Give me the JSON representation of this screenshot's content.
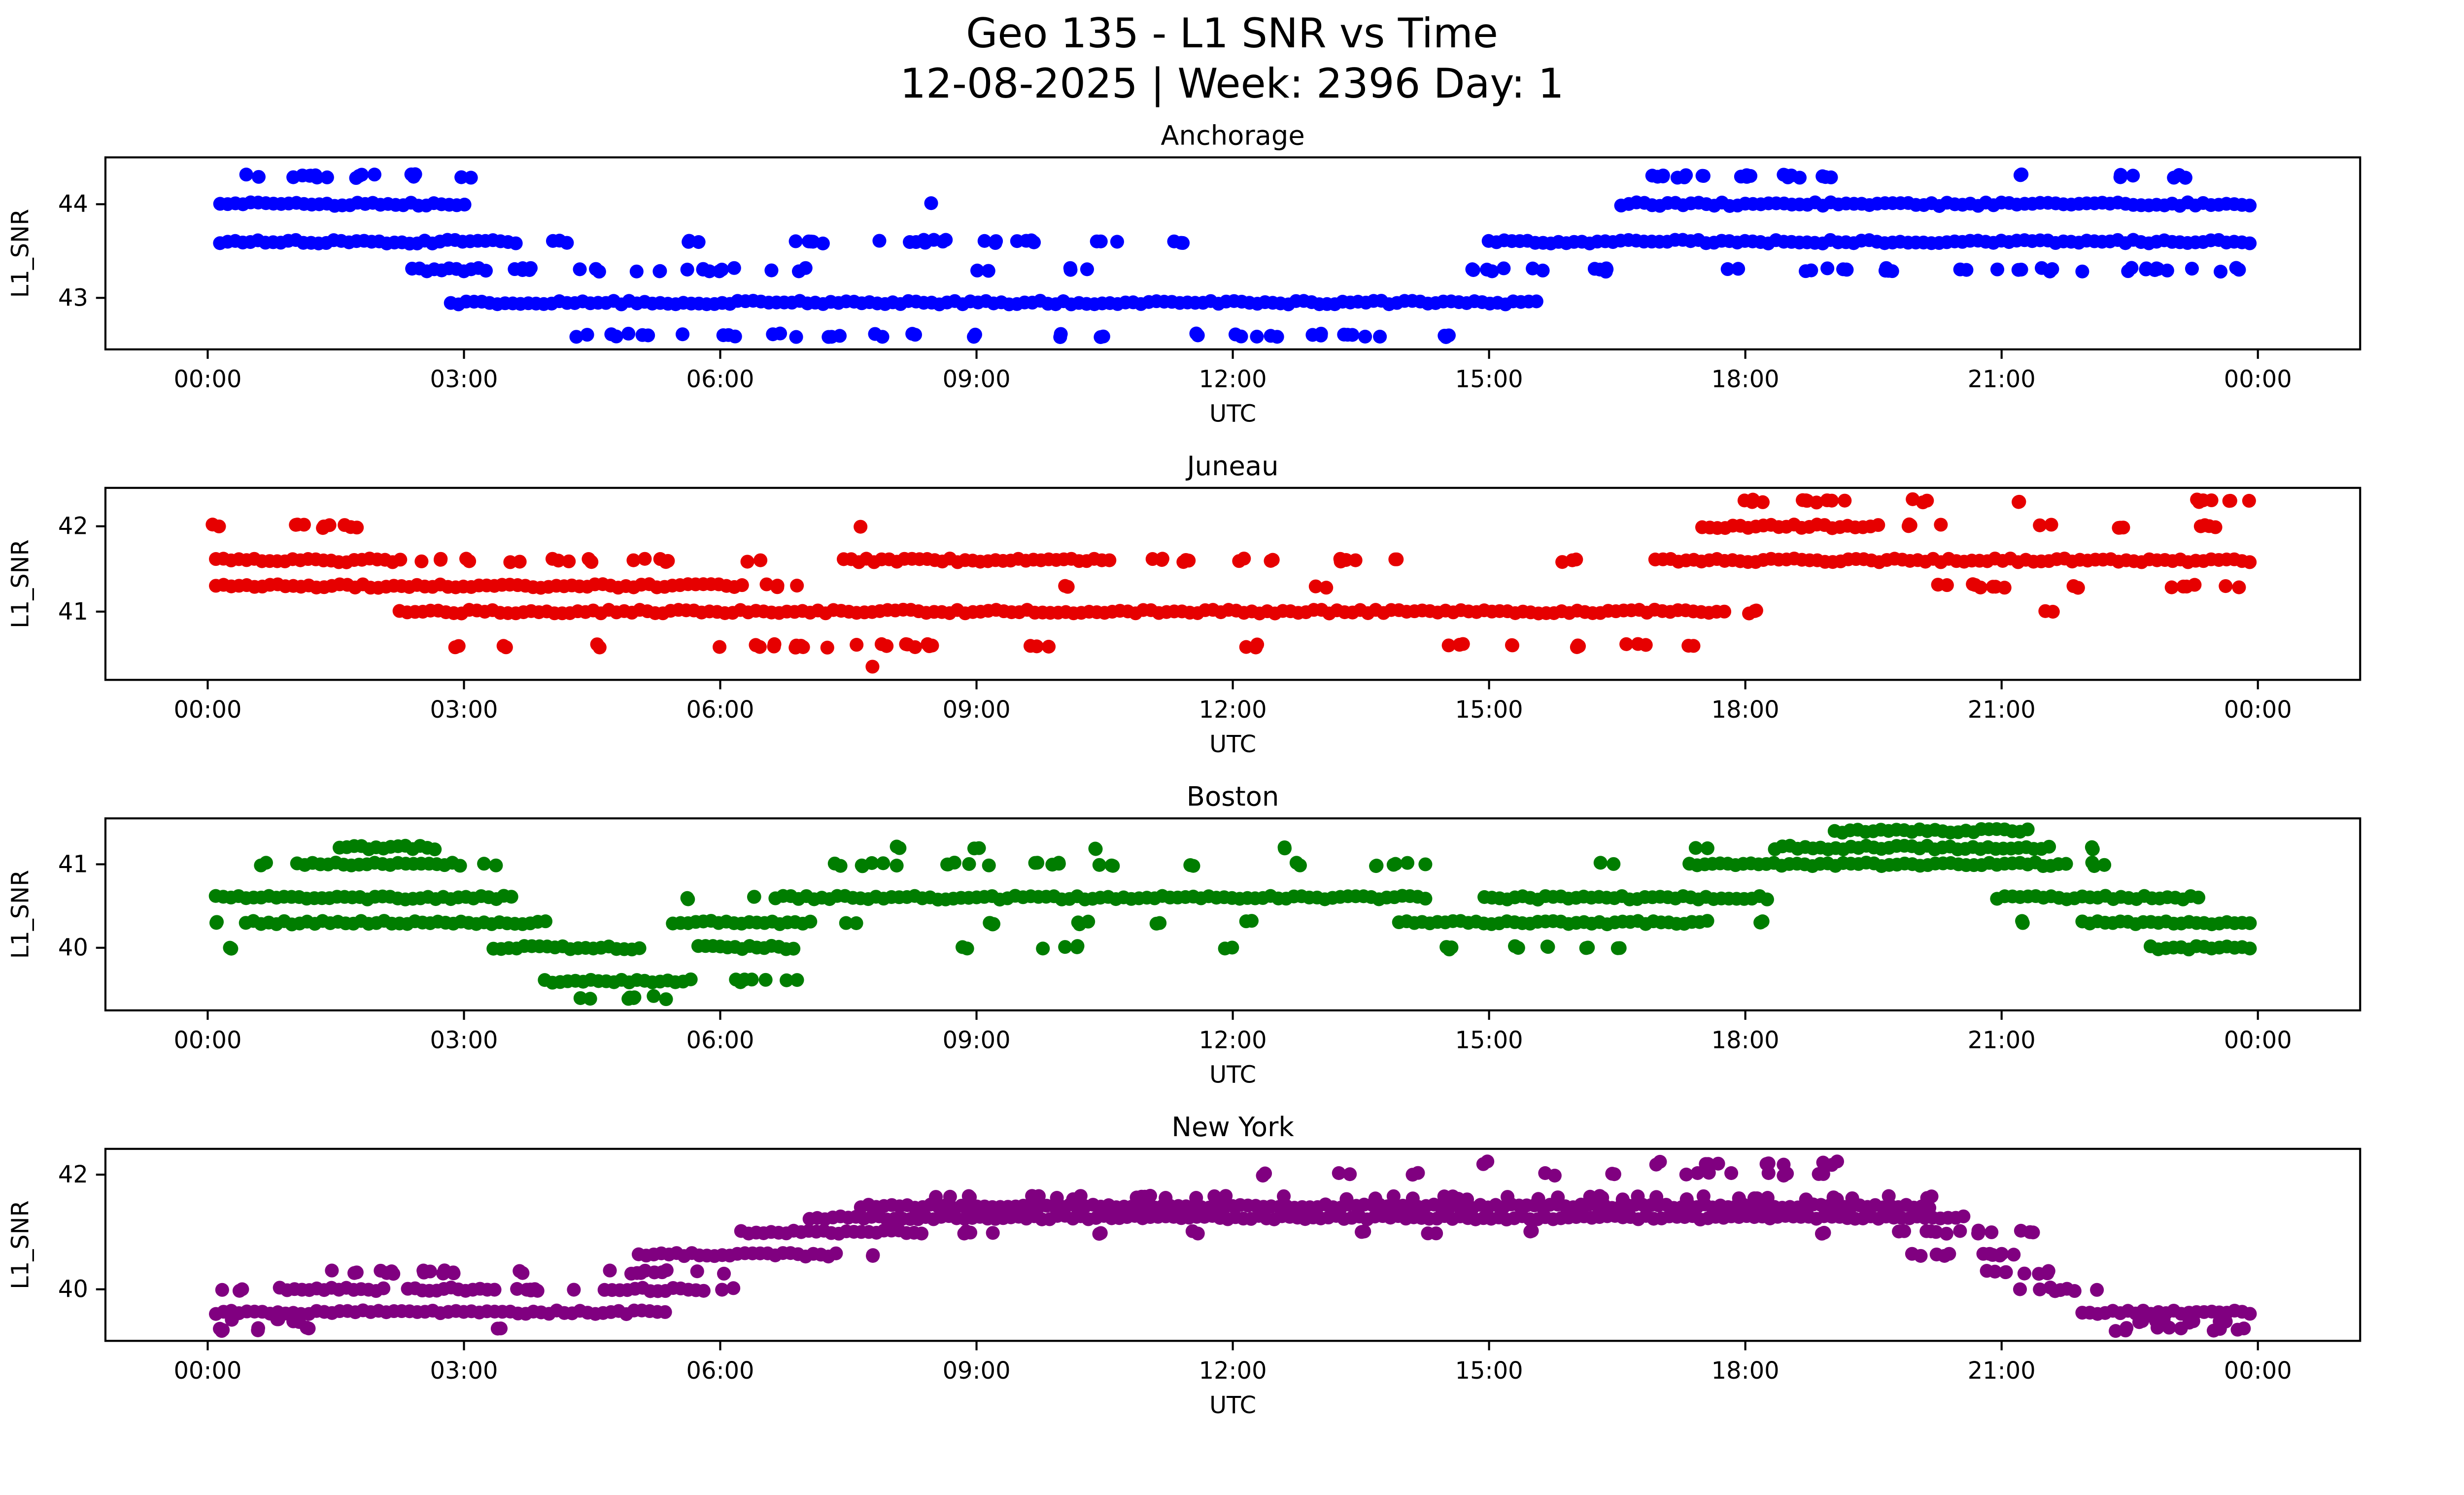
{
  "figure": {
    "title": "Geo 135 - L1 SNR vs Time",
    "subtitle": "12-08-2025 | Week: 2396 Day: 1"
  },
  "axes": {
    "xlabel": "UTC",
    "ylabel": "L1_SNR",
    "xticks": [
      "00:00",
      "03:00",
      "06:00",
      "09:00",
      "12:00",
      "15:00",
      "18:00",
      "21:00",
      "00:00"
    ],
    "xtick_hours": [
      0,
      3,
      6,
      9,
      12,
      15,
      18,
      21,
      24
    ]
  },
  "chart_data": [
    {
      "type": "scatter",
      "title": "Anchorage",
      "color": "#0000ff",
      "xlabel": "UTC",
      "ylabel": "L1_SNR",
      "xlim": [
        0,
        24
      ],
      "ylim": [
        42.45,
        44.5
      ],
      "yticks": [
        43,
        44
      ],
      "ytick_labels": [
        "43",
        "44"
      ],
      "snr_levels": [
        42.6,
        42.95,
        43.3,
        43.6,
        44.0,
        44.3
      ],
      "runs": [
        [
          44.3,
          0.45,
          0.6,
          2
        ],
        [
          44.3,
          0.95,
          1.55,
          7
        ],
        [
          44.3,
          1.7,
          2.0,
          4
        ],
        [
          44.3,
          2.25,
          2.45,
          3
        ],
        [
          44.3,
          2.95,
          3.1,
          2
        ],
        [
          44.3,
          16.85,
          17.6,
          9
        ],
        [
          44.3,
          17.9,
          18.65,
          9
        ],
        [
          44.3,
          18.9,
          19.15,
          3
        ],
        [
          44.3,
          21.2,
          21.35,
          2
        ],
        [
          44.3,
          22.3,
          22.55,
          3
        ],
        [
          44.3,
          23.0,
          23.35,
          4
        ],
        [
          44.0,
          0.1,
          3.05,
          -1
        ],
        [
          44.0,
          8.4,
          8.5,
          1
        ],
        [
          44.0,
          16.5,
          23.95,
          -1
        ],
        [
          43.6,
          0.1,
          3.65,
          -1
        ],
        [
          43.6,
          4.0,
          4.25,
          3
        ],
        [
          43.6,
          5.55,
          5.8,
          3
        ],
        [
          43.6,
          6.85,
          7.35,
          5
        ],
        [
          43.6,
          7.5,
          8.65,
          9
        ],
        [
          43.6,
          8.9,
          9.75,
          7
        ],
        [
          43.6,
          10.35,
          10.65,
          3
        ],
        [
          43.6,
          11.15,
          11.45,
          3
        ],
        [
          43.6,
          14.95,
          23.95,
          -1
        ],
        [
          43.3,
          2.35,
          3.3,
          -1
        ],
        [
          43.3,
          3.5,
          4.0,
          5
        ],
        [
          43.3,
          4.3,
          4.6,
          3
        ],
        [
          43.3,
          5.0,
          5.35,
          3
        ],
        [
          43.3,
          5.5,
          6.6,
          8
        ],
        [
          43.3,
          6.9,
          7.1,
          2
        ],
        [
          43.3,
          9.0,
          9.2,
          2
        ],
        [
          43.3,
          10.05,
          10.3,
          3
        ],
        [
          43.3,
          14.55,
          15.2,
          6
        ],
        [
          43.3,
          15.5,
          16.6,
          8
        ],
        [
          43.3,
          17.75,
          17.95,
          2
        ],
        [
          43.3,
          18.6,
          19.3,
          6
        ],
        [
          43.3,
          19.6,
          20.0,
          4
        ],
        [
          43.3,
          20.5,
          21.6,
          8
        ],
        [
          43.3,
          21.9,
          23.3,
          10
        ],
        [
          43.3,
          23.55,
          23.8,
          3
        ],
        [
          42.95,
          2.8,
          15.6,
          -1
        ],
        [
          42.6,
          4.2,
          4.45,
          2
        ],
        [
          42.6,
          4.7,
          5.6,
          6
        ],
        [
          42.6,
          5.9,
          6.2,
          3
        ],
        [
          42.6,
          6.5,
          7.4,
          6
        ],
        [
          42.6,
          7.7,
          7.9,
          2
        ],
        [
          42.6,
          8.2,
          8.4,
          2
        ],
        [
          42.6,
          8.9,
          9.1,
          2
        ],
        [
          42.6,
          9.9,
          10.1,
          2
        ],
        [
          42.6,
          10.45,
          10.6,
          2
        ],
        [
          42.6,
          11.4,
          11.6,
          2
        ],
        [
          42.6,
          12.0,
          12.6,
          5
        ],
        [
          42.6,
          12.9,
          14.0,
          8
        ],
        [
          42.6,
          14.3,
          14.6,
          3
        ]
      ]
    },
    {
      "type": "scatter",
      "title": "Juneau",
      "color": "#e60000",
      "xlabel": "UTC",
      "ylabel": "L1_SNR",
      "xlim": [
        0,
        24
      ],
      "ylim": [
        40.2,
        42.45
      ],
      "yticks": [
        41,
        42
      ],
      "ytick_labels": [
        "41",
        "42"
      ],
      "snr_levels": [
        40.35,
        40.6,
        41.0,
        41.3,
        41.6,
        42.0,
        42.3
      ],
      "runs": [
        [
          42.3,
          17.9,
          18.3,
          5
        ],
        [
          42.3,
          18.6,
          19.4,
          8
        ],
        [
          42.3,
          19.9,
          20.15,
          3
        ],
        [
          42.3,
          21.1,
          21.3,
          2
        ],
        [
          42.3,
          23.2,
          23.5,
          4
        ],
        [
          42.3,
          23.65,
          23.9,
          3
        ],
        [
          42.0,
          0.05,
          0.2,
          2
        ],
        [
          42.0,
          0.9,
          1.15,
          3
        ],
        [
          42.0,
          1.3,
          1.5,
          3
        ],
        [
          42.0,
          1.6,
          1.8,
          3
        ],
        [
          42.0,
          7.55,
          7.65,
          1
        ],
        [
          42.0,
          17.45,
          19.6,
          -1
        ],
        [
          42.0,
          19.9,
          20.3,
          4
        ],
        [
          42.0,
          21.4,
          21.6,
          2
        ],
        [
          42.0,
          22.2,
          22.45,
          3
        ],
        [
          42.0,
          23.3,
          23.6,
          4
        ],
        [
          41.6,
          0.05,
          2.3,
          -1
        ],
        [
          41.6,
          2.5,
          2.75,
          3
        ],
        [
          41.6,
          2.95,
          3.1,
          2
        ],
        [
          41.6,
          3.5,
          3.7,
          2
        ],
        [
          41.6,
          4.0,
          4.6,
          6
        ],
        [
          41.6,
          4.9,
          5.4,
          5
        ],
        [
          41.6,
          6.3,
          6.5,
          2
        ],
        [
          41.6,
          7.4,
          10.6,
          -1
        ],
        [
          41.6,
          10.9,
          11.6,
          6
        ],
        [
          41.6,
          11.9,
          12.15,
          2
        ],
        [
          41.6,
          12.4,
          12.6,
          2
        ],
        [
          41.6,
          13.1,
          13.5,
          4
        ],
        [
          41.6,
          13.8,
          14.0,
          2
        ],
        [
          41.6,
          15.8,
          16.15,
          3
        ],
        [
          41.6,
          16.9,
          23.95,
          -1
        ],
        [
          41.3,
          0.05,
          6.3,
          -1
        ],
        [
          41.3,
          6.5,
          6.9,
          4
        ],
        [
          41.3,
          9.9,
          10.1,
          2
        ],
        [
          41.3,
          12.9,
          13.1,
          2
        ],
        [
          41.3,
          20.2,
          21.1,
          8
        ],
        [
          41.3,
          21.8,
          22.05,
          2
        ],
        [
          41.3,
          22.9,
          23.35,
          4
        ],
        [
          41.3,
          23.6,
          23.85,
          2
        ],
        [
          41.0,
          2.2,
          17.8,
          -1
        ],
        [
          41.0,
          18.0,
          18.3,
          3
        ],
        [
          41.0,
          21.5,
          21.7,
          2
        ],
        [
          40.6,
          2.8,
          3.0,
          2
        ],
        [
          40.6,
          3.3,
          3.5,
          2
        ],
        [
          40.6,
          4.4,
          4.6,
          2
        ],
        [
          40.6,
          5.9,
          7.3,
          12
        ],
        [
          40.6,
          7.5,
          8.6,
          9
        ],
        [
          40.6,
          9.6,
          9.9,
          3
        ],
        [
          40.6,
          12.1,
          12.4,
          3
        ],
        [
          40.6,
          14.5,
          14.8,
          3
        ],
        [
          40.6,
          15.2,
          15.4,
          2
        ],
        [
          40.6,
          15.9,
          16.2,
          3
        ],
        [
          40.6,
          16.6,
          16.9,
          3
        ],
        [
          40.6,
          17.2,
          17.4,
          2
        ],
        [
          40.35,
          7.7,
          7.8,
          1
        ]
      ]
    },
    {
      "type": "scatter",
      "title": "Boston",
      "color": "#007d00",
      "xlabel": "UTC",
      "ylabel": "L1_SNR",
      "xlim": [
        0,
        24
      ],
      "ylim": [
        39.25,
        41.55
      ],
      "yticks": [
        40,
        41
      ],
      "ytick_labels": [
        "40",
        "41"
      ],
      "snr_levels": [
        39.4,
        39.6,
        40.0,
        40.3,
        40.6,
        41.0,
        41.2,
        41.4
      ],
      "runs": [
        [
          41.4,
          19.0,
          21.35,
          -1
        ],
        [
          41.2,
          1.5,
          2.7,
          -1
        ],
        [
          41.2,
          8.0,
          8.2,
          2
        ],
        [
          41.2,
          8.9,
          9.1,
          2
        ],
        [
          41.2,
          10.3,
          10.5,
          2
        ],
        [
          41.2,
          12.5,
          12.7,
          2
        ],
        [
          41.2,
          17.4,
          17.6,
          2
        ],
        [
          41.2,
          18.3,
          21.6,
          -1
        ],
        [
          41.2,
          21.9,
          22.1,
          2
        ],
        [
          41.0,
          0.5,
          0.7,
          2
        ],
        [
          41.0,
          1.0,
          3.0,
          -1
        ],
        [
          41.0,
          3.2,
          3.4,
          2
        ],
        [
          41.0,
          7.3,
          8.3,
          7
        ],
        [
          41.0,
          8.6,
          9.2,
          5
        ],
        [
          41.0,
          9.6,
          10.7,
          8
        ],
        [
          41.0,
          11.5,
          11.7,
          2
        ],
        [
          41.0,
          12.6,
          12.8,
          2
        ],
        [
          41.0,
          13.5,
          14.3,
          6
        ],
        [
          41.0,
          16.3,
          16.5,
          2
        ],
        [
          41.0,
          17.3,
          21.8,
          -1
        ],
        [
          41.0,
          22.0,
          22.4,
          3
        ],
        [
          40.6,
          0.05,
          3.6,
          -1
        ],
        [
          40.6,
          5.6,
          5.8,
          2
        ],
        [
          40.6,
          6.2,
          6.4,
          2
        ],
        [
          40.6,
          6.6,
          14.3,
          -1
        ],
        [
          40.6,
          14.9,
          18.3,
          -1
        ],
        [
          40.6,
          20.9,
          23.35,
          -1
        ],
        [
          40.3,
          0.05,
          0.2,
          2
        ],
        [
          40.3,
          0.4,
          4.0,
          -1
        ],
        [
          40.3,
          5.4,
          7.1,
          -1
        ],
        [
          40.3,
          7.4,
          7.6,
          2
        ],
        [
          40.3,
          9.0,
          9.4,
          3
        ],
        [
          40.3,
          10.1,
          10.4,
          3
        ],
        [
          40.3,
          11.1,
          11.3,
          2
        ],
        [
          40.3,
          12.1,
          12.3,
          2
        ],
        [
          40.3,
          13.9,
          17.6,
          -1
        ],
        [
          40.3,
          18.1,
          18.3,
          2
        ],
        [
          40.3,
          21.2,
          21.4,
          2
        ],
        [
          40.3,
          21.9,
          23.95,
          -1
        ],
        [
          40.0,
          0.15,
          0.3,
          2
        ],
        [
          40.0,
          3.3,
          5.1,
          -1
        ],
        [
          40.0,
          5.7,
          6.9,
          -1
        ],
        [
          40.0,
          8.8,
          9.0,
          2
        ],
        [
          40.0,
          9.7,
          10.2,
          4
        ],
        [
          40.0,
          11.9,
          12.1,
          2
        ],
        [
          40.0,
          14.4,
          14.7,
          3
        ],
        [
          40.0,
          15.2,
          16.6,
          8
        ],
        [
          40.0,
          22.7,
          23.95,
          -1
        ],
        [
          39.6,
          3.9,
          5.7,
          -1
        ],
        [
          39.6,
          6.1,
          6.9,
          7
        ],
        [
          39.4,
          4.3,
          5.4,
          8
        ]
      ]
    },
    {
      "type": "scatter",
      "title": "New York",
      "color": "#800080",
      "xlabel": "UTC",
      "ylabel": "L1_SNR",
      "xlim": [
        0,
        24
      ],
      "ylim": [
        39.1,
        42.45
      ],
      "yticks": [
        40,
        42
      ],
      "ytick_labels": [
        "40",
        "42"
      ],
      "snr_levels": [
        39.3,
        39.6,
        40.0,
        40.3,
        40.6,
        41.0,
        41.3,
        41.6,
        42.0,
        42.2
      ],
      "runs": [
        [
          42.2,
          14.9,
          15.1,
          2
        ],
        [
          42.2,
          16.9,
          17.1,
          2
        ],
        [
          42.2,
          17.5,
          17.8,
          3
        ],
        [
          42.2,
          18.2,
          18.5,
          3
        ],
        [
          42.2,
          18.9,
          19.2,
          3
        ],
        [
          42.0,
          12.2,
          12.4,
          2
        ],
        [
          42.0,
          13.2,
          13.4,
          2
        ],
        [
          42.0,
          14.0,
          14.2,
          2
        ],
        [
          42.0,
          15.6,
          15.8,
          2
        ],
        [
          42.0,
          16.3,
          16.5,
          2
        ],
        [
          42.0,
          16.9,
          19.3,
          9
        ],
        [
          41.6,
          8.4,
          9.0,
          4
        ],
        [
          41.6,
          9.6,
          10.4,
          5
        ],
        [
          41.6,
          10.8,
          12.6,
          9
        ],
        [
          41.6,
          13.0,
          14.8,
          9
        ],
        [
          41.6,
          15.2,
          17.0,
          9
        ],
        [
          41.6,
          17.3,
          19.8,
          11
        ],
        [
          41.6,
          20.0,
          20.3,
          3
        ],
        [
          41.45,
          7.6,
          20.2,
          -1
        ],
        [
          41.25,
          7.0,
          20.6,
          -1
        ],
        [
          41.0,
          6.2,
          8.4,
          -1
        ],
        [
          41.0,
          8.7,
          9.3,
          4
        ],
        [
          41.0,
          10.3,
          10.5,
          2
        ],
        [
          41.0,
          11.5,
          11.7,
          2
        ],
        [
          41.0,
          13.4,
          13.6,
          2
        ],
        [
          41.0,
          14.2,
          14.4,
          2
        ],
        [
          41.0,
          15.4,
          15.6,
          2
        ],
        [
          41.0,
          18.8,
          19.0,
          2
        ],
        [
          41.0,
          19.5,
          21.0,
          10
        ],
        [
          41.0,
          21.2,
          21.45,
          3
        ],
        [
          40.6,
          5.0,
          7.4,
          -1
        ],
        [
          40.6,
          7.7,
          7.9,
          2
        ],
        [
          40.6,
          19.9,
          20.1,
          2
        ],
        [
          40.6,
          20.2,
          21.3,
          9
        ],
        [
          40.3,
          1.4,
          3.3,
          14
        ],
        [
          40.3,
          3.6,
          3.8,
          2
        ],
        [
          40.3,
          4.7,
          6.1,
          10
        ],
        [
          40.3,
          20.8,
          21.7,
          8
        ],
        [
          40.0,
          0.1,
          0.45,
          3
        ],
        [
          40.0,
          0.8,
          2.1,
          -1
        ],
        [
          40.0,
          2.3,
          3.4,
          -1
        ],
        [
          40.0,
          3.6,
          4.4,
          7
        ],
        [
          40.0,
          4.6,
          5.85,
          -1
        ],
        [
          40.0,
          6.0,
          6.2,
          2
        ],
        [
          40.0,
          21.2,
          22.3,
          8
        ],
        [
          39.6,
          0.05,
          5.4,
          -1
        ],
        [
          39.6,
          21.9,
          23.95,
          -1
        ],
        [
          39.45,
          0.1,
          1.2,
          6
        ],
        [
          39.45,
          22.5,
          23.9,
          8
        ],
        [
          39.3,
          0.1,
          0.35,
          3
        ],
        [
          39.3,
          0.55,
          0.75,
          2
        ],
        [
          39.3,
          1.0,
          1.2,
          2
        ],
        [
          39.3,
          3.3,
          3.5,
          2
        ],
        [
          39.3,
          22.3,
          22.55,
          3
        ],
        [
          39.3,
          22.8,
          23.1,
          3
        ],
        [
          39.3,
          23.4,
          23.85,
          4
        ]
      ]
    }
  ]
}
